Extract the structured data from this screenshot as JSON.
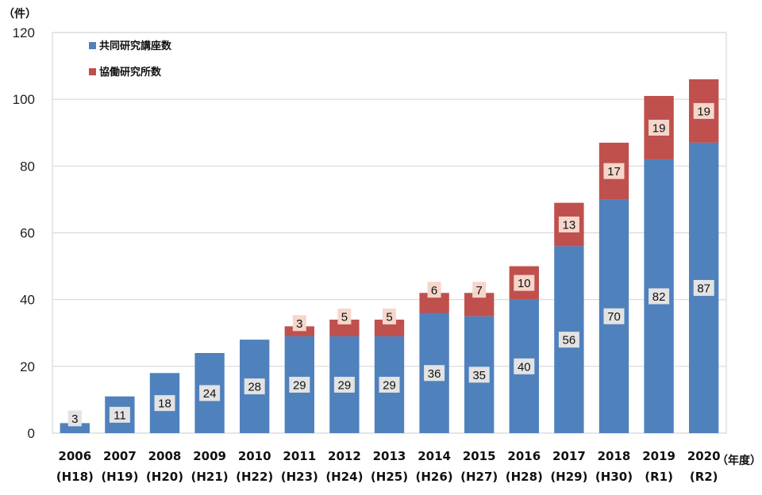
{
  "chart_data": {
    "type": "bar",
    "stacked": true,
    "y_unit_label": "（件）",
    "x_unit_label": "（年度）",
    "ylim": [
      0,
      120
    ],
    "y_ticks": [
      0,
      20,
      40,
      60,
      80,
      100,
      120
    ],
    "grid": true,
    "legend_position": "top-left",
    "categories": [
      [
        "2006",
        "(H18)"
      ],
      [
        "2007",
        "(H19)"
      ],
      [
        "2008",
        "(H20)"
      ],
      [
        "2009",
        "(H21)"
      ],
      [
        "2010",
        "(H22)"
      ],
      [
        "2011",
        "(H23)"
      ],
      [
        "2012",
        "(H24)"
      ],
      [
        "2013",
        "(H25)"
      ],
      [
        "2014",
        "(H26)"
      ],
      [
        "2015",
        "(H27)"
      ],
      [
        "2016",
        "(H28)"
      ],
      [
        "2017",
        "(H29)"
      ],
      [
        "2018",
        "(H30)"
      ],
      [
        "2019",
        "(R1)"
      ],
      [
        "2020",
        "(R2)"
      ]
    ],
    "series": [
      {
        "name": "共同研究講座数",
        "color": "#4f81bd",
        "values": [
          3,
          11,
          18,
          24,
          28,
          29,
          29,
          29,
          36,
          35,
          40,
          56,
          70,
          82,
          87
        ]
      },
      {
        "name": "協働研究所数",
        "color": "#c0504d",
        "values": [
          null,
          null,
          null,
          null,
          null,
          3,
          5,
          5,
          6,
          7,
          10,
          13,
          17,
          19,
          19
        ]
      }
    ]
  }
}
